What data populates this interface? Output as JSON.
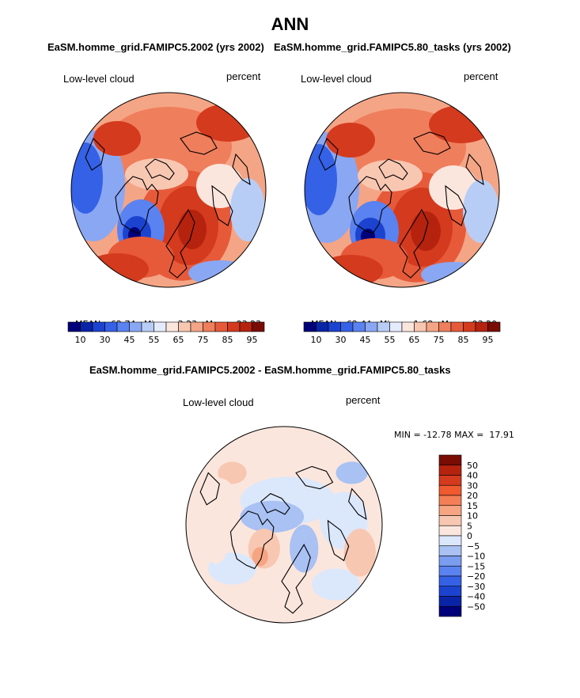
{
  "page": {
    "title": "ANN"
  },
  "panels": [
    {
      "subtitle": "EaSM.homme_grid.FAMIPC5.2002 (yrs 2002)",
      "variable": "Low-level cloud",
      "units": "percent",
      "stats": {
        "mean_label": "MEAN=",
        "mean": "62.74",
        "min_label": "Min=",
        "min": "3.23",
        "max_label": "Max=",
        "max": "93.23"
      }
    },
    {
      "subtitle": "EaSM.homme_grid.FAMIPC5.80_tasks (yrs 2002)",
      "variable": "Low-level cloud",
      "units": "percent",
      "stats": {
        "mean_label": "MEAN=",
        "mean": "62.44",
        "min_label": "Min=",
        "min": "1.68",
        "max_label": "Max=",
        "max": "93.20"
      }
    }
  ],
  "diff_panel": {
    "subtitle": "EaSM.homme_grid.FAMIPC5.2002 - EaSM.homme_grid.FAMIPC5.80_tasks",
    "variable": "Low-level cloud",
    "units": "percent",
    "stats_text": "MIN = -12.78 MAX =  17.91"
  },
  "chart_data": [
    {
      "type": "heatmap",
      "projection": "north-polar-stereographic",
      "title": "EaSM.homme_grid.FAMIPC5.2002 (yrs 2002)",
      "field": "Low-level cloud",
      "units": "percent",
      "mean": 62.74,
      "min": 3.23,
      "max": 93.23,
      "colorbar_tick_labels": [
        "10",
        "30",
        "45",
        "55",
        "65",
        "75",
        "85",
        "95"
      ],
      "colorbar_colors": [
        "#00007a",
        "#0a24a8",
        "#1c43cf",
        "#3561e6",
        "#5a82f0",
        "#8aa7f3",
        "#b8cdf6",
        "#e4ecfb",
        "#fbe6dd",
        "#f8c7b2",
        "#f4a586",
        "#ef7e5c",
        "#e65a3a",
        "#d43a1e",
        "#b5230f",
        "#7a0c06"
      ]
    },
    {
      "type": "heatmap",
      "projection": "north-polar-stereographic",
      "title": "EaSM.homme_grid.FAMIPC5.80_tasks (yrs 2002)",
      "field": "Low-level cloud",
      "units": "percent",
      "mean": 62.44,
      "min": 1.68,
      "max": 93.2,
      "colorbar_tick_labels": [
        "10",
        "30",
        "45",
        "55",
        "65",
        "75",
        "85",
        "95"
      ],
      "colorbar_colors": [
        "#00007a",
        "#0a24a8",
        "#1c43cf",
        "#3561e6",
        "#5a82f0",
        "#8aa7f3",
        "#b8cdf6",
        "#e4ecfb",
        "#fbe6dd",
        "#f8c7b2",
        "#f4a586",
        "#ef7e5c",
        "#e65a3a",
        "#d43a1e",
        "#b5230f",
        "#7a0c06"
      ]
    },
    {
      "type": "heatmap",
      "projection": "north-polar-stereographic",
      "title": "EaSM.homme_grid.FAMIPC5.2002 - EaSM.homme_grid.FAMIPC5.80_tasks",
      "field": "Low-level cloud difference",
      "units": "percent",
      "min": -12.78,
      "max": 17.91,
      "colorbar_tick_labels": [
        "50",
        "40",
        "30",
        "20",
        "15",
        "10",
        "5",
        "0",
        "−5",
        "−10",
        "−15",
        "−20",
        "−30",
        "−40",
        "−50"
      ],
      "colorbar_colors": [
        "#7a0c06",
        "#b5230f",
        "#d43a1e",
        "#ef5a2e",
        "#f47f56",
        "#f6a482",
        "#f8c7b2",
        "#fbe6dd",
        "#dbe7fb",
        "#a9c1f3",
        "#7b9df0",
        "#5a82f0",
        "#3561e6",
        "#1c43cf",
        "#0a24a8",
        "#00007a"
      ]
    }
  ]
}
